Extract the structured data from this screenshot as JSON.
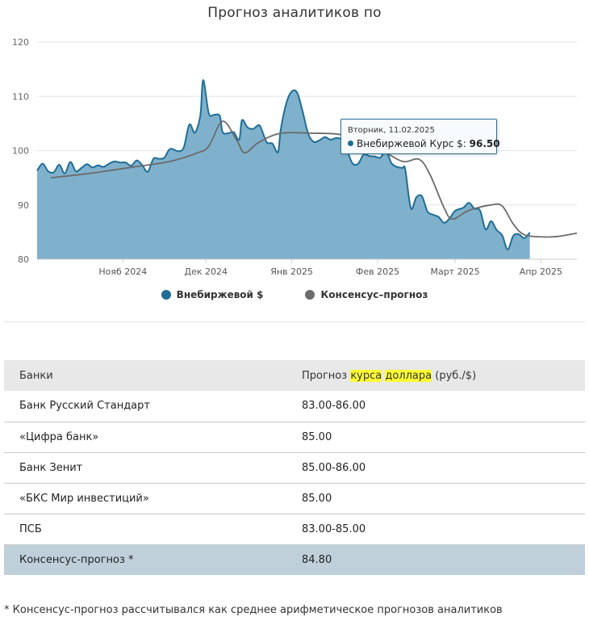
{
  "chart_data": {
    "type": "area",
    "title": "Прогноз аналитиков по",
    "xlabel": "",
    "ylabel": "",
    "ylim": [
      80,
      120
    ],
    "y_ticks": [
      80,
      90,
      100,
      110,
      120
    ],
    "x_range": [
      "2024-10-01",
      "2025-04-14"
    ],
    "x_ticks": [
      {
        "date": "2024-11-01",
        "label": "Нояб 2024"
      },
      {
        "date": "2024-12-01",
        "label": "Дек 2024"
      },
      {
        "date": "2025-01-01",
        "label": "Янв 2025"
      },
      {
        "date": "2025-02-01",
        "label": "Фев 2025"
      },
      {
        "date": "2025-03-01",
        "label": "Март 2025"
      },
      {
        "date": "2025-04-01",
        "label": "Апр 2025"
      }
    ],
    "grid": true,
    "legend_position": "bottom",
    "series": [
      {
        "name": "Внебиржевой $",
        "type": "area",
        "color": "#1f6d95",
        "fill": "#7fb1cc",
        "points": [
          [
            "2024-10-01",
            96.3
          ],
          [
            "2024-10-03",
            97.6
          ],
          [
            "2024-10-05",
            96.2
          ],
          [
            "2024-10-07",
            96.0
          ],
          [
            "2024-10-09",
            97.4
          ],
          [
            "2024-10-11",
            95.8
          ],
          [
            "2024-10-13",
            97.9
          ],
          [
            "2024-10-15",
            96.2
          ],
          [
            "2024-10-17",
            96.8
          ],
          [
            "2024-10-19",
            97.5
          ],
          [
            "2024-10-21",
            96.9
          ],
          [
            "2024-10-23",
            97.3
          ],
          [
            "2024-10-25",
            97.0
          ],
          [
            "2024-10-27",
            97.6
          ],
          [
            "2024-10-29",
            98.0
          ],
          [
            "2024-10-31",
            97.8
          ],
          [
            "2024-11-02",
            97.8
          ],
          [
            "2024-11-04",
            97.2
          ],
          [
            "2024-11-06",
            98.2
          ],
          [
            "2024-11-08",
            97.3
          ],
          [
            "2024-11-10",
            96.1
          ],
          [
            "2024-11-12",
            98.5
          ],
          [
            "2024-11-14",
            98.5
          ],
          [
            "2024-11-16",
            98.7
          ],
          [
            "2024-11-18",
            100.3
          ],
          [
            "2024-11-21",
            99.9
          ],
          [
            "2024-11-23",
            100.6
          ],
          [
            "2024-11-25",
            104.8
          ],
          [
            "2024-11-27",
            103.3
          ],
          [
            "2024-11-29",
            106.6
          ],
          [
            "2024-11-30",
            113.0
          ],
          [
            "2024-12-02",
            106.9
          ],
          [
            "2024-12-04",
            106.6
          ],
          [
            "2024-12-06",
            106.4
          ],
          [
            "2024-12-07",
            103.4
          ],
          [
            "2024-12-09",
            103.2
          ],
          [
            "2024-12-11",
            103.4
          ],
          [
            "2024-12-13",
            102.0
          ],
          [
            "2024-12-14",
            105.6
          ],
          [
            "2024-12-16",
            104.3
          ],
          [
            "2024-12-18",
            104.0
          ],
          [
            "2024-12-20",
            104.7
          ],
          [
            "2024-12-21",
            104.0
          ],
          [
            "2024-12-23",
            101.5
          ],
          [
            "2024-12-25",
            101.3
          ],
          [
            "2024-12-27",
            99.7
          ],
          [
            "2024-12-28",
            103.8
          ],
          [
            "2024-12-30",
            108.7
          ],
          [
            "2025-01-01",
            110.9
          ],
          [
            "2025-01-03",
            110.6
          ],
          [
            "2025-01-05",
            107.0
          ],
          [
            "2025-01-07",
            103.0
          ],
          [
            "2025-01-09",
            101.6
          ],
          [
            "2025-01-11",
            101.9
          ],
          [
            "2025-01-13",
            102.5
          ],
          [
            "2025-01-15",
            102.0
          ],
          [
            "2025-01-17",
            102.3
          ],
          [
            "2025-01-19",
            102.0
          ],
          [
            "2025-01-21",
            100.0
          ],
          [
            "2025-01-23",
            97.6
          ],
          [
            "2025-01-25",
            97.6
          ],
          [
            "2025-01-27",
            99.3
          ],
          [
            "2025-01-29",
            99.0
          ],
          [
            "2025-01-31",
            98.9
          ],
          [
            "2025-02-02",
            98.7
          ],
          [
            "2025-02-04",
            100.0
          ],
          [
            "2025-02-06",
            97.7
          ],
          [
            "2025-02-08",
            97.0
          ],
          [
            "2025-02-10",
            96.8
          ],
          [
            "2025-02-11",
            96.5
          ],
          [
            "2025-02-13",
            89.4
          ],
          [
            "2025-02-15",
            91.4
          ],
          [
            "2025-02-17",
            91.6
          ],
          [
            "2025-02-19",
            88.8
          ],
          [
            "2025-02-21",
            88.2
          ],
          [
            "2025-02-23",
            87.8
          ],
          [
            "2025-02-25",
            86.7
          ],
          [
            "2025-02-27",
            87.5
          ],
          [
            "2025-03-01",
            88.9
          ],
          [
            "2025-03-04",
            89.5
          ],
          [
            "2025-03-06",
            90.4
          ],
          [
            "2025-03-08",
            89.3
          ],
          [
            "2025-03-10",
            89.0
          ],
          [
            "2025-03-12",
            85.5
          ],
          [
            "2025-03-14",
            87.0
          ],
          [
            "2025-03-16",
            85.4
          ],
          [
            "2025-03-18",
            84.4
          ],
          [
            "2025-03-20",
            81.8
          ],
          [
            "2025-03-22",
            84.3
          ],
          [
            "2025-03-24",
            84.6
          ],
          [
            "2025-03-26",
            83.9
          ],
          [
            "2025-03-28",
            84.9
          ]
        ]
      },
      {
        "name": "Консенсус–прогноз",
        "type": "line",
        "color": "#6b6b6b",
        "points": [
          [
            "2024-10-06",
            95.0
          ],
          [
            "2024-10-20",
            95.8
          ],
          [
            "2024-11-05",
            97.0
          ],
          [
            "2024-11-18",
            98.0
          ],
          [
            "2024-11-28",
            99.6
          ],
          [
            "2024-12-02",
            100.8
          ],
          [
            "2024-12-07",
            105.4
          ],
          [
            "2024-12-12",
            102.0
          ],
          [
            "2024-12-15",
            99.6
          ],
          [
            "2024-12-20",
            101.5
          ],
          [
            "2024-12-28",
            103.2
          ],
          [
            "2025-01-08",
            103.2
          ],
          [
            "2025-01-18",
            103.0
          ],
          [
            "2025-01-25",
            101.8
          ],
          [
            "2025-02-02",
            100.2
          ],
          [
            "2025-02-10",
            98.0
          ],
          [
            "2025-02-16",
            98.4
          ],
          [
            "2025-02-20",
            95.5
          ],
          [
            "2025-02-25",
            89.5
          ],
          [
            "2025-02-28",
            87.4
          ],
          [
            "2025-03-06",
            89.0
          ],
          [
            "2025-03-14",
            90.0
          ],
          [
            "2025-03-18",
            89.8
          ],
          [
            "2025-03-22",
            86.5
          ],
          [
            "2025-03-26",
            84.5
          ],
          [
            "2025-04-02",
            84.1
          ],
          [
            "2025-04-07",
            84.2
          ],
          [
            "2025-04-14",
            84.8
          ]
        ]
      }
    ],
    "tooltip": {
      "date": "Вторник, 11.02.2025",
      "label": "Внебиржевой Курс $:",
      "value": "96.50"
    }
  },
  "legend": [
    {
      "label": "Внебиржевой $",
      "color": "#1f6d95"
    },
    {
      "label": "Консенсус–прогноз",
      "color": "#6b6b6b"
    }
  ],
  "table": {
    "header": {
      "col1": "Банки",
      "col2_prefix": "Прогноз ",
      "col2_hl1": "курса",
      "col2_space": " ",
      "col2_hl2": "доллара",
      "col2_suffix": " (руб./$)"
    },
    "rows": [
      {
        "bank": "Банк Русский Стандарт",
        "forecast": "83.00-86.00"
      },
      {
        "bank": "«Цифра банк»",
        "forecast": "85.00"
      },
      {
        "bank": "Банк Зенит",
        "forecast": "85.00-86.00"
      },
      {
        "bank": "«БКС Мир инвестиций»",
        "forecast": "85.00"
      },
      {
        "bank": "ПСБ",
        "forecast": "83.00-85.00"
      }
    ],
    "consensus": {
      "bank": "Консенсус-прогноз *",
      "forecast": "84.80"
    }
  },
  "footnote": "* Консенсус-прогноз рассчитывался как среднее арифметическое прогнозов аналитиков"
}
